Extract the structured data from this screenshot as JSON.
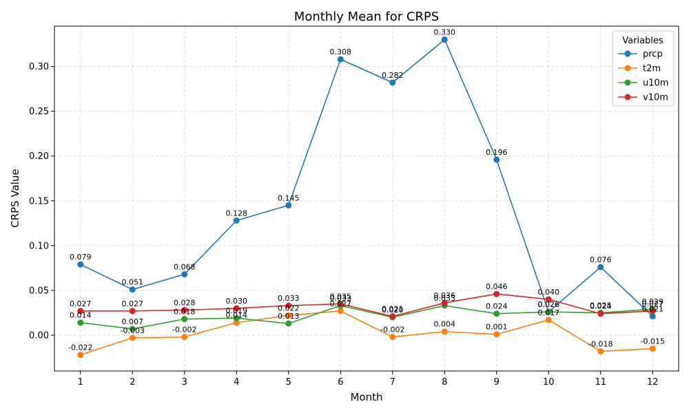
{
  "chart_data": {
    "type": "line",
    "title": "Monthly Mean for CRPS",
    "xlabel": "Month",
    "ylabel": "CRPS Value",
    "x": [
      1,
      2,
      3,
      4,
      5,
      6,
      7,
      8,
      9,
      10,
      11,
      12
    ],
    "xlim": [
      0.5,
      12.5
    ],
    "ylim": [
      -0.04,
      0.345
    ],
    "yticks": [
      0.0,
      0.05,
      0.1,
      0.15,
      0.2,
      0.25,
      0.3
    ],
    "ytick_labels": [
      "0.00",
      "0.05",
      "0.10",
      "0.15",
      "0.20",
      "0.25",
      "0.30"
    ],
    "grid": true,
    "legend_title": "Variables",
    "legend_position": "top-right",
    "series": [
      {
        "name": "prcp",
        "color": "#1f77b4",
        "values": [
          0.079,
          0.051,
          0.068,
          0.128,
          0.145,
          0.308,
          0.282,
          0.33,
          0.196,
          0.026,
          0.076,
          0.021
        ],
        "labels": [
          "0.079",
          "0.051",
          "0.068",
          "0.128",
          "0.145",
          "0.308",
          "0.282",
          "0.330",
          "0.196",
          "0.026",
          "0.076",
          "0.021"
        ]
      },
      {
        "name": "t2m",
        "color": "#ff7f0e",
        "values": [
          -0.022,
          -0.003,
          -0.002,
          0.014,
          0.022,
          0.027,
          -0.002,
          0.004,
          0.001,
          0.017,
          -0.018,
          -0.015
        ],
        "labels": [
          "-0.022",
          "-0.003",
          "-0.002",
          "0.014",
          "0.022",
          "0.027",
          "-0.002",
          "0.004",
          "0.001",
          "0.017",
          "-0.018",
          "-0.015"
        ]
      },
      {
        "name": "u10m",
        "color": "#2ca02c",
        "values": [
          0.014,
          0.007,
          0.018,
          0.019,
          0.013,
          0.033,
          0.02,
          0.033,
          0.024,
          0.026,
          0.025,
          0.029
        ],
        "labels": [
          "0.014",
          "0.007",
          "0.018",
          "0.019",
          "0.013",
          "0.033",
          "0.020",
          "0.033",
          "0.024",
          "0.026",
          "0.025",
          "0.029"
        ]
      },
      {
        "name": "v10m",
        "color": "#d62728",
        "values": [
          0.027,
          0.027,
          0.028,
          0.03,
          0.033,
          0.035,
          0.021,
          0.036,
          0.046,
          0.04,
          0.024,
          0.027
        ],
        "labels": [
          "0.027",
          "0.027",
          "0.028",
          "0.030",
          "0.033",
          "0.035",
          "0.021",
          "0.036",
          "0.046",
          "0.040",
          "0.024",
          "0.027"
        ]
      }
    ]
  }
}
